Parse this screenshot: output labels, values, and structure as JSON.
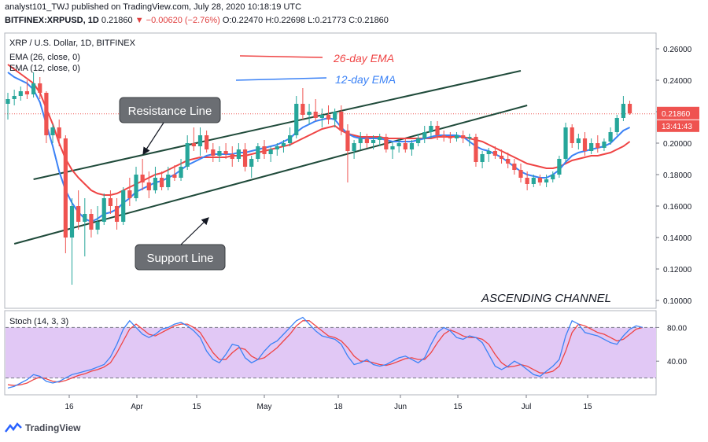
{
  "header": {
    "publish_line": "analyst101_TWJ published on TradingView.com, July 28, 2020 10:18:19 UTC",
    "symbol": "BITFINEX:XRPUSD, 1D",
    "price": "0.21860",
    "change_arrow": "▼",
    "change": "−0.00620 (−2.76%)",
    "ohlc_o": "O:0.22470",
    "ohlc_h": "H:0.22698",
    "ohlc_l": "L:0.21773",
    "ohlc_c": "C:0.21860"
  },
  "legend": {
    "title": "XRP / U.S. Dollar, 1D, BITFINEX",
    "ema26_label": "EMA (26, close, 0)",
    "ema12_label": "EMA (12, close, 0)",
    "stoch_label": "Stoch (14, 3, 3)"
  },
  "annotations": {
    "ema26_callout": "26-day EMA",
    "ema12_callout": "12-day EMA",
    "resistance": "Resistance Line",
    "support": "Support Line",
    "pattern": "ASCENDING CHANNEL"
  },
  "price_tag": "0.21860",
  "countdown_tag": "13:41:43",
  "footer": {
    "logo_text": "TradingView"
  },
  "colors": {
    "up": "#26a69a",
    "down": "#ef5350",
    "ema26": "#ef4444",
    "ema12": "#3b82f6",
    "stoch_k": "#3b82f6",
    "stoch_d": "#ef4444",
    "stoch_band": "#e1c8f5",
    "channel": "#1f4a3a"
  },
  "chart_data": [
    {
      "type": "candlestick",
      "title": "XRP / U.S. Dollar, 1D, BITFINEX",
      "x_tick_labels": [
        "16",
        "Apr",
        "15",
        "May",
        "18",
        "Jun",
        "15",
        "Jul",
        "15"
      ],
      "y_tick_labels": [
        "0.26000",
        "0.24000",
        "0.22000",
        "0.20000",
        "0.18000",
        "0.16000",
        "0.14000",
        "0.12000",
        "0.10000"
      ],
      "ylim": [
        0.095,
        0.27
      ],
      "last_price": 0.2186,
      "ohlc": [
        [
          0.225,
          0.232,
          0.215,
          0.228
        ],
        [
          0.228,
          0.234,
          0.224,
          0.23
        ],
        [
          0.23,
          0.236,
          0.227,
          0.233
        ],
        [
          0.233,
          0.24,
          0.228,
          0.231
        ],
        [
          0.231,
          0.245,
          0.229,
          0.238
        ],
        [
          0.238,
          0.242,
          0.228,
          0.232
        ],
        [
          0.232,
          0.233,
          0.2,
          0.205
        ],
        [
          0.205,
          0.212,
          0.2,
          0.21
        ],
        [
          0.21,
          0.215,
          0.198,
          0.203
        ],
        [
          0.203,
          0.205,
          0.13,
          0.14
        ],
        [
          0.14,
          0.165,
          0.11,
          0.16
        ],
        [
          0.16,
          0.17,
          0.145,
          0.15
        ],
        [
          0.15,
          0.165,
          0.128,
          0.155
        ],
        [
          0.155,
          0.158,
          0.14,
          0.145
        ],
        [
          0.145,
          0.16,
          0.142,
          0.15
        ],
        [
          0.15,
          0.168,
          0.148,
          0.165
        ],
        [
          0.165,
          0.17,
          0.155,
          0.16
        ],
        [
          0.16,
          0.165,
          0.145,
          0.15
        ],
        [
          0.15,
          0.172,
          0.148,
          0.17
        ],
        [
          0.17,
          0.178,
          0.16,
          0.165
        ],
        [
          0.165,
          0.185,
          0.163,
          0.18
        ],
        [
          0.18,
          0.19,
          0.17,
          0.175
        ],
        [
          0.175,
          0.182,
          0.165,
          0.17
        ],
        [
          0.17,
          0.185,
          0.168,
          0.178
        ],
        [
          0.178,
          0.182,
          0.17,
          0.172
        ],
        [
          0.172,
          0.185,
          0.17,
          0.18
        ],
        [
          0.18,
          0.186,
          0.176,
          0.178
        ],
        [
          0.178,
          0.19,
          0.176,
          0.185
        ],
        [
          0.185,
          0.205,
          0.183,
          0.2
        ],
        [
          0.2,
          0.21,
          0.195,
          0.198
        ],
        [
          0.198,
          0.21,
          0.192,
          0.205
        ],
        [
          0.205,
          0.208,
          0.194,
          0.196
        ],
        [
          0.196,
          0.2,
          0.188,
          0.192
        ],
        [
          0.192,
          0.198,
          0.188,
          0.195
        ],
        [
          0.195,
          0.2,
          0.19,
          0.193
        ],
        [
          0.193,
          0.198,
          0.185,
          0.19
        ],
        [
          0.19,
          0.2,
          0.188,
          0.196
        ],
        [
          0.196,
          0.2,
          0.182,
          0.185
        ],
        [
          0.185,
          0.192,
          0.178,
          0.19
        ],
        [
          0.19,
          0.2,
          0.188,
          0.198
        ],
        [
          0.198,
          0.202,
          0.19,
          0.193
        ],
        [
          0.193,
          0.198,
          0.188,
          0.196
        ],
        [
          0.196,
          0.2,
          0.192,
          0.198
        ],
        [
          0.198,
          0.202,
          0.194,
          0.2
        ],
        [
          0.2,
          0.21,
          0.198,
          0.205
        ],
        [
          0.205,
          0.23,
          0.203,
          0.225
        ],
        [
          0.225,
          0.235,
          0.215,
          0.218
        ],
        [
          0.218,
          0.225,
          0.212,
          0.22
        ],
        [
          0.22,
          0.228,
          0.214,
          0.216
        ],
        [
          0.216,
          0.222,
          0.21,
          0.218
        ],
        [
          0.218,
          0.224,
          0.212,
          0.215
        ],
        [
          0.215,
          0.222,
          0.21,
          0.22
        ],
        [
          0.22,
          0.224,
          0.205,
          0.208
        ],
        [
          0.208,
          0.212,
          0.175,
          0.195
        ],
        [
          0.195,
          0.202,
          0.19,
          0.2
        ],
        [
          0.2,
          0.207,
          0.196,
          0.203
        ],
        [
          0.203,
          0.206,
          0.197,
          0.2
        ],
        [
          0.2,
          0.205,
          0.196,
          0.202
        ],
        [
          0.202,
          0.206,
          0.198,
          0.204
        ],
        [
          0.204,
          0.206,
          0.194,
          0.196
        ],
        [
          0.196,
          0.201,
          0.19,
          0.198
        ],
        [
          0.198,
          0.203,
          0.194,
          0.2
        ],
        [
          0.2,
          0.203,
          0.194,
          0.196
        ],
        [
          0.196,
          0.202,
          0.192,
          0.2
        ],
        [
          0.2,
          0.206,
          0.198,
          0.203
        ],
        [
          0.203,
          0.211,
          0.2,
          0.207
        ],
        [
          0.207,
          0.214,
          0.203,
          0.211
        ],
        [
          0.211,
          0.214,
          0.202,
          0.205
        ],
        [
          0.205,
          0.208,
          0.201,
          0.204
        ],
        [
          0.204,
          0.207,
          0.2,
          0.203
        ],
        [
          0.203,
          0.207,
          0.201,
          0.205
        ],
        [
          0.205,
          0.208,
          0.2,
          0.203
        ],
        [
          0.203,
          0.206,
          0.198,
          0.204
        ],
        [
          0.204,
          0.206,
          0.185,
          0.188
        ],
        [
          0.188,
          0.195,
          0.184,
          0.193
        ],
        [
          0.193,
          0.197,
          0.188,
          0.195
        ],
        [
          0.195,
          0.198,
          0.19,
          0.192
        ],
        [
          0.192,
          0.196,
          0.187,
          0.19
        ],
        [
          0.19,
          0.194,
          0.184,
          0.187
        ],
        [
          0.187,
          0.19,
          0.18,
          0.183
        ],
        [
          0.183,
          0.187,
          0.175,
          0.178
        ],
        [
          0.178,
          0.182,
          0.17,
          0.174
        ],
        [
          0.174,
          0.18,
          0.172,
          0.178
        ],
        [
          0.178,
          0.18,
          0.173,
          0.175
        ],
        [
          0.175,
          0.18,
          0.172,
          0.177
        ],
        [
          0.177,
          0.182,
          0.175,
          0.18
        ],
        [
          0.18,
          0.192,
          0.178,
          0.19
        ],
        [
          0.19,
          0.213,
          0.188,
          0.21
        ],
        [
          0.21,
          0.212,
          0.197,
          0.2
        ],
        [
          0.2,
          0.206,
          0.196,
          0.203
        ],
        [
          0.203,
          0.207,
          0.192,
          0.195
        ],
        [
          0.195,
          0.203,
          0.193,
          0.2
        ],
        [
          0.2,
          0.205,
          0.194,
          0.197
        ],
        [
          0.197,
          0.203,
          0.195,
          0.201
        ],
        [
          0.201,
          0.21,
          0.199,
          0.207
        ],
        [
          0.207,
          0.218,
          0.205,
          0.216
        ],
        [
          0.216,
          0.23,
          0.214,
          0.225
        ],
        [
          0.225,
          0.227,
          0.218,
          0.219
        ]
      ],
      "ema26": [
        0.25,
        0.247,
        0.244,
        0.241,
        0.238,
        0.232,
        0.222,
        0.212,
        0.2,
        0.19,
        0.183,
        0.178,
        0.174,
        0.17,
        0.168,
        0.167,
        0.167,
        0.168,
        0.17,
        0.172,
        0.174,
        0.176,
        0.178,
        0.18,
        0.181,
        0.183,
        0.185,
        0.187,
        0.189,
        0.19,
        0.191,
        0.191,
        0.191,
        0.191,
        0.191,
        0.192,
        0.192,
        0.192,
        0.193,
        0.194,
        0.195,
        0.196,
        0.197,
        0.198,
        0.199,
        0.201,
        0.203,
        0.205,
        0.207,
        0.209,
        0.21,
        0.211,
        0.208,
        0.206,
        0.205,
        0.204,
        0.204,
        0.204,
        0.204,
        0.203,
        0.203,
        0.203,
        0.203,
        0.203,
        0.203,
        0.203,
        0.203,
        0.204,
        0.204,
        0.204,
        0.204,
        0.204,
        0.203,
        0.202,
        0.201,
        0.199,
        0.197,
        0.195,
        0.193,
        0.191,
        0.189,
        0.187,
        0.186,
        0.185,
        0.184,
        0.184,
        0.185,
        0.187,
        0.189,
        0.19,
        0.191,
        0.192,
        0.192,
        0.193,
        0.194,
        0.196,
        0.198,
        0.201
      ],
      "ema12": [
        0.245,
        0.242,
        0.24,
        0.238,
        0.234,
        0.226,
        0.212,
        0.198,
        0.182,
        0.17,
        0.162,
        0.156,
        0.152,
        0.15,
        0.152,
        0.155,
        0.156,
        0.158,
        0.162,
        0.165,
        0.169,
        0.171,
        0.173,
        0.175,
        0.176,
        0.178,
        0.18,
        0.183,
        0.186,
        0.188,
        0.19,
        0.192,
        0.193,
        0.193,
        0.193,
        0.193,
        0.194,
        0.194,
        0.195,
        0.196,
        0.197,
        0.198,
        0.199,
        0.201,
        0.203,
        0.207,
        0.21,
        0.212,
        0.214,
        0.215,
        0.216,
        0.215,
        0.21,
        0.206,
        0.204,
        0.203,
        0.203,
        0.203,
        0.203,
        0.202,
        0.201,
        0.201,
        0.201,
        0.201,
        0.202,
        0.203,
        0.204,
        0.205,
        0.205,
        0.205,
        0.205,
        0.204,
        0.201,
        0.198,
        0.196,
        0.195,
        0.193,
        0.191,
        0.188,
        0.185,
        0.182,
        0.18,
        0.179,
        0.178,
        0.178,
        0.18,
        0.183,
        0.188,
        0.192,
        0.194,
        0.195,
        0.196,
        0.197,
        0.198,
        0.2,
        0.204,
        0.208,
        0.21
      ],
      "resistance_line": {
        "start": {
          "bar": 4,
          "price": 0.177
        },
        "end": {
          "bar": 80,
          "price": 0.246
        }
      },
      "support_line": {
        "start": {
          "bar": 1,
          "price": 0.136
        },
        "end": {
          "bar": 81,
          "price": 0.224
        }
      }
    },
    {
      "type": "line",
      "title": "Stoch (14, 3, 3)",
      "y_tick_labels": [
        "80.00",
        "40.00"
      ],
      "ylim": [
        0,
        100
      ],
      "band": [
        20,
        80
      ],
      "series": [
        {
          "values": [
            8,
            10,
            14,
            18,
            24,
            22,
            16,
            14,
            16,
            20,
            24,
            26,
            28,
            30,
            33,
            36,
            45,
            60,
            78,
            88,
            80,
            72,
            68,
            72,
            78,
            80,
            84,
            86,
            82,
            76,
            68,
            52,
            42,
            38,
            48,
            60,
            58,
            44,
            38,
            42,
            52,
            60,
            64,
            72,
            80,
            88,
            92,
            84,
            76,
            70,
            68,
            66,
            60,
            46,
            36,
            38,
            42,
            36,
            34,
            36,
            40,
            44,
            46,
            42,
            38,
            44,
            60,
            74,
            80,
            76,
            68,
            66,
            70,
            68,
            62,
            48,
            34,
            30,
            34,
            40,
            36,
            30,
            24,
            22,
            28,
            34,
            42,
            70,
            88,
            84,
            74,
            72,
            70,
            66,
            62,
            60,
            70,
            78,
            82,
            80
          ]
        },
        {
          "values": [
            12,
            11,
            12,
            14,
            18,
            21,
            19,
            16,
            15,
            17,
            20,
            23,
            25,
            28,
            30,
            33,
            38,
            50,
            64,
            78,
            84,
            78,
            72,
            70,
            74,
            78,
            82,
            84,
            84,
            80,
            74,
            62,
            50,
            42,
            42,
            50,
            56,
            54,
            46,
            42,
            44,
            50,
            56,
            64,
            72,
            82,
            88,
            88,
            82,
            76,
            70,
            68,
            64,
            56,
            46,
            40,
            40,
            38,
            36,
            35,
            37,
            40,
            43,
            44,
            42,
            42,
            50,
            62,
            72,
            77,
            74,
            70,
            68,
            68,
            66,
            60,
            48,
            38,
            33,
            34,
            36,
            34,
            30,
            26,
            26,
            28,
            34,
            52,
            74,
            84,
            82,
            78,
            74,
            72,
            68,
            64,
            66,
            72,
            78,
            80
          ]
        }
      ]
    }
  ]
}
